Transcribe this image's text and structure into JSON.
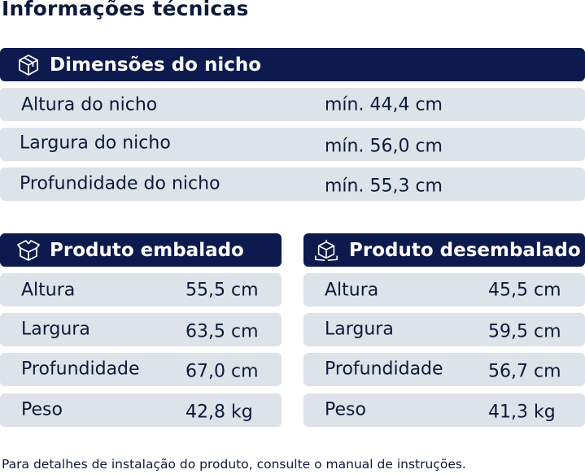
{
  "title": "Informações técnicas",
  "niche": {
    "header": "Dimensões do nicho",
    "icon": "box-icon",
    "rows": [
      {
        "label": "Altura do nicho",
        "value": "mín. 44,4 cm"
      },
      {
        "label": "Largura do nicho",
        "value": "mín. 56,0 cm"
      },
      {
        "label": "Profundidade do nicho",
        "value": "mín. 55,3 cm"
      }
    ]
  },
  "packed": {
    "header": "Produto embalado",
    "icon": "open-box-icon",
    "rows": [
      {
        "label": "Altura",
        "value": "55,5 cm"
      },
      {
        "label": "Largura",
        "value": "63,5 cm"
      },
      {
        "label": "Profundidade",
        "value": "67,0 cm"
      },
      {
        "label": "Peso",
        "value": "42,8 kg"
      }
    ]
  },
  "unpacked": {
    "header": "Produto desembalado",
    "icon": "cube-dimensions-icon",
    "rows": [
      {
        "label": "Altura",
        "value": "45,5 cm"
      },
      {
        "label": "Largura",
        "value": "59,5 cm"
      },
      {
        "label": "Profundidade",
        "value": "56,7 cm"
      },
      {
        "label": "Peso",
        "value": "41,3 kg"
      }
    ]
  },
  "footnote": "Para detalhes de instalação do produto, consulte o manual de instruções.",
  "colors": {
    "header_bg": "#0c1a4d",
    "row_bg": "#dde3e9",
    "text": "#0d1a3a"
  }
}
